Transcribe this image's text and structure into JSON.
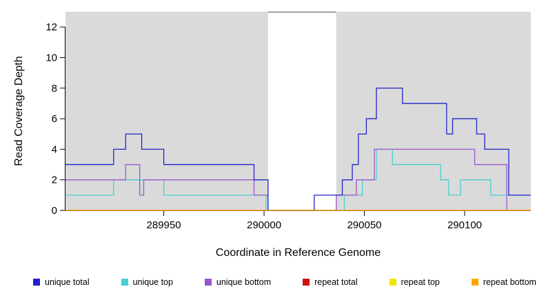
{
  "chart_data": {
    "type": "line",
    "subtype": "step-coverage",
    "xlabel": "Coordinate in Reference Genome",
    "ylabel": "Read Coverage Depth",
    "xlim": [
      289901,
      290133
    ],
    "ylim": [
      0,
      13
    ],
    "xticks": [
      289950,
      290000,
      290050,
      290100
    ],
    "yticks": [
      0,
      2,
      4,
      6,
      8,
      10,
      12
    ],
    "panel_bg": "#DADADA",
    "gap": {
      "from": 290002,
      "to": 290036,
      "fill": "#FFFFFF"
    },
    "grid": "off",
    "legend_position": "bottom",
    "series": [
      {
        "name": "repeat total",
        "color": "#CC1111",
        "points": [
          [
            289901,
            0
          ],
          [
            290133,
            0
          ]
        ]
      },
      {
        "name": "repeat top",
        "color": "#EFE600",
        "points": [
          [
            289901,
            0
          ],
          [
            290133,
            0
          ]
        ]
      },
      {
        "name": "unique top",
        "color": "#45CFCF",
        "points": [
          [
            289901,
            1
          ],
          [
            289925,
            2
          ],
          [
            289950,
            1
          ],
          [
            290001,
            0
          ],
          [
            290040,
            1
          ],
          [
            290049,
            2
          ],
          [
            290056,
            4
          ],
          [
            290064,
            3
          ],
          [
            290088,
            2
          ],
          [
            290092,
            1
          ],
          [
            290098,
            2
          ],
          [
            290113,
            1
          ],
          [
            290133,
            1
          ]
        ]
      },
      {
        "name": "unique bottom",
        "color": "#9955CC",
        "points": [
          [
            289901,
            2
          ],
          [
            289931,
            3
          ],
          [
            289938,
            1
          ],
          [
            289940,
            2
          ],
          [
            289995,
            1
          ],
          [
            290002,
            0
          ],
          [
            290036,
            1
          ],
          [
            290046,
            2
          ],
          [
            290055,
            4
          ],
          [
            290105,
            3
          ],
          [
            290121,
            0
          ],
          [
            290133,
            0
          ]
        ]
      },
      {
        "name": "unique total",
        "color": "#2222CC",
        "points": [
          [
            289901,
            3
          ],
          [
            289925,
            4
          ],
          [
            289931,
            5
          ],
          [
            289939,
            4
          ],
          [
            289950,
            3
          ],
          [
            289995,
            2
          ],
          [
            290002,
            0
          ],
          [
            290025,
            1
          ],
          [
            290039,
            2
          ],
          [
            290044,
            3
          ],
          [
            290047,
            5
          ],
          [
            290051,
            6
          ],
          [
            290056,
            8
          ],
          [
            290069,
            7
          ],
          [
            290091,
            5
          ],
          [
            290094,
            6
          ],
          [
            290106,
            5
          ],
          [
            290110,
            4
          ],
          [
            290122,
            1
          ],
          [
            290133,
            1
          ]
        ]
      },
      {
        "name": "repeat bottom",
        "color": "#FFA500",
        "points": [
          [
            289901,
            0
          ],
          [
            290133,
            0
          ]
        ]
      }
    ],
    "legend": {
      "items": [
        {
          "label": "unique total",
          "color": "#2222CC"
        },
        {
          "label": "unique top",
          "color": "#45CFCF"
        },
        {
          "label": "unique bottom",
          "color": "#9955CC"
        },
        {
          "label": "repeat total",
          "color": "#CC1111"
        },
        {
          "label": "repeat top",
          "color": "#EFE600"
        },
        {
          "label": "repeat bottom",
          "color": "#FFA500"
        }
      ]
    }
  }
}
